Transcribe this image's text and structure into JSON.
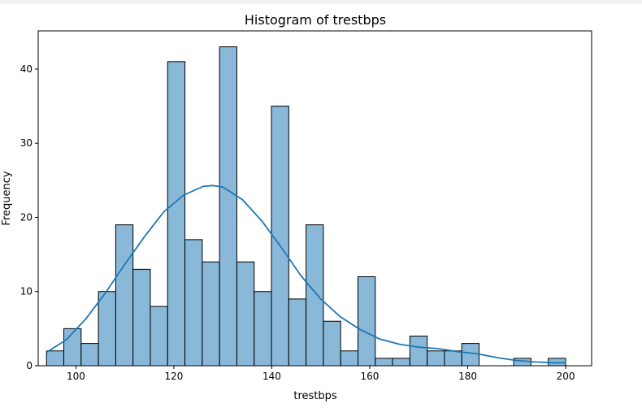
{
  "chart_data": {
    "type": "bar",
    "title": "Histogram of trestbps",
    "xlabel": "trestbps",
    "ylabel": "Frequency",
    "xlim": [
      92.3,
      205.3
    ],
    "ylim": [
      0,
      45.15
    ],
    "xticks": [
      100,
      120,
      140,
      160,
      180,
      200
    ],
    "yticks": [
      0,
      10,
      20,
      30,
      40
    ],
    "bin_start": 94,
    "bin_width": 3.533,
    "counts": [
      2,
      5,
      3,
      10,
      19,
      13,
      8,
      41,
      17,
      14,
      43,
      14,
      10,
      35,
      9,
      19,
      6,
      2,
      12,
      1,
      1,
      4,
      2,
      2,
      3,
      0,
      0,
      1,
      0,
      1
    ],
    "bar_color": "#8ab8d9",
    "edge_color": "#000000",
    "kde": {
      "color": "#1f77b4",
      "x": [
        94,
        98,
        102,
        106,
        110,
        114,
        118,
        122,
        126,
        128,
        130,
        134,
        138,
        142,
        146,
        150,
        154,
        158,
        162,
        166,
        170,
        174,
        178,
        182,
        186,
        190,
        194,
        198,
        200
      ],
      "y": [
        1.8,
        3.5,
        6.3,
        9.8,
        13.7,
        17.4,
        20.8,
        23.0,
        24.2,
        24.3,
        24.1,
        22.4,
        19.5,
        15.9,
        12.1,
        9.0,
        6.6,
        4.9,
        3.6,
        2.9,
        2.5,
        2.3,
        1.9,
        1.6,
        1.1,
        0.7,
        0.5,
        0.4,
        0.4
      ]
    },
    "grid": false
  }
}
